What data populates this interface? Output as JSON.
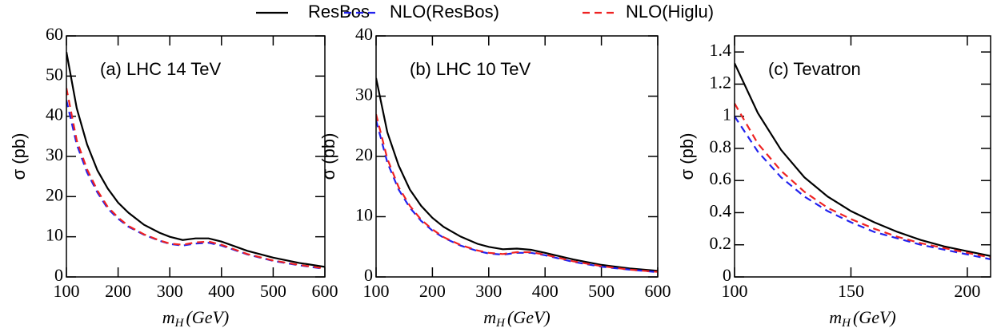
{
  "chart_data": [
    {
      "type": "line",
      "annotation": "(a)  LHC 14 TeV",
      "ylabel": "σ (pb)",
      "xlabel": {
        "symbol": "m",
        "subscript": "H",
        "unit": "(GeV)"
      },
      "x": [
        100,
        120,
        140,
        160,
        180,
        200,
        220,
        250,
        280,
        300,
        325,
        350,
        375,
        400,
        450,
        500,
        550,
        600
      ],
      "series": [
        {
          "name": "ResBos",
          "color": "#000000",
          "dash": "solid",
          "values": [
            56,
            42,
            33,
            26.5,
            22,
            18.5,
            16,
            13,
            11,
            10,
            9.2,
            9.6,
            9.6,
            8.8,
            6.5,
            4.8,
            3.5,
            2.5
          ]
        },
        {
          "name": "NLO(ResBos)",
          "color": "#2222ee",
          "dash": "dashed",
          "values": [
            44,
            33,
            26,
            21,
            17,
            14.5,
            12.5,
            10.5,
            9,
            8.2,
            7.8,
            8.3,
            8.5,
            7.8,
            5.6,
            4,
            2.9,
            2
          ]
        },
        {
          "name": "NLO(Higlu)",
          "color": "#ee2222",
          "dash": "dashed",
          "values": [
            47,
            34,
            26.8,
            21.5,
            17.4,
            14.8,
            12.7,
            10.6,
            9.1,
            8.3,
            8,
            8.6,
            8.8,
            8,
            5.7,
            4.1,
            3,
            2.1
          ]
        }
      ],
      "xlim": [
        100,
        600
      ],
      "xticks": [
        100,
        200,
        300,
        400,
        500,
        600
      ],
      "ylim": [
        0,
        60
      ],
      "yticks": [
        0,
        10,
        20,
        30,
        40,
        50,
        60
      ]
    },
    {
      "type": "line",
      "annotation": "(b)  LHC 10 TeV",
      "ylabel": "σ (pb)",
      "xlabel": {
        "symbol": "m",
        "subscript": "H",
        "unit": "(GeV)"
      },
      "x": [
        100,
        120,
        140,
        160,
        180,
        200,
        220,
        250,
        280,
        300,
        325,
        350,
        375,
        400,
        450,
        500,
        550,
        600
      ],
      "series": [
        {
          "name": "ResBos",
          "color": "#000000",
          "dash": "solid",
          "values": [
            33,
            24,
            18.5,
            14.5,
            11.8,
            9.8,
            8.3,
            6.7,
            5.5,
            5,
            4.6,
            4.7,
            4.5,
            4,
            2.9,
            2,
            1.4,
            1
          ]
        },
        {
          "name": "NLO(ResBos)",
          "color": "#2222ee",
          "dash": "dashed",
          "values": [
            26,
            19,
            14.5,
            11.5,
            9.3,
            7.7,
            6.5,
            5.2,
            4.3,
            3.9,
            3.7,
            4,
            4,
            3.6,
            2.5,
            1.7,
            1.2,
            0.8
          ]
        },
        {
          "name": "NLO(Higlu)",
          "color": "#ee2222",
          "dash": "dashed",
          "values": [
            27,
            19.6,
            14.9,
            11.8,
            9.5,
            7.9,
            6.6,
            5.3,
            4.4,
            4,
            3.8,
            4.1,
            4.1,
            3.7,
            2.6,
            1.8,
            1.2,
            0.85
          ]
        }
      ],
      "xlim": [
        100,
        600
      ],
      "xticks": [
        100,
        200,
        300,
        400,
        500,
        600
      ],
      "ylim": [
        0,
        40
      ],
      "yticks": [
        0,
        10,
        20,
        30,
        40
      ]
    },
    {
      "type": "line",
      "annotation": "(c)  Tevatron",
      "ylabel": "σ (pb)",
      "xlabel": {
        "symbol": "m",
        "subscript": "H",
        "unit": "(GeV)"
      },
      "x": [
        100,
        110,
        120,
        130,
        140,
        150,
        160,
        170,
        180,
        190,
        200,
        210
      ],
      "series": [
        {
          "name": "ResBos",
          "color": "#000000",
          "dash": "solid",
          "values": [
            1.33,
            1.02,
            0.79,
            0.62,
            0.5,
            0.41,
            0.34,
            0.28,
            0.23,
            0.19,
            0.16,
            0.13
          ]
        },
        {
          "name": "NLO(ResBos)",
          "color": "#2222ee",
          "dash": "dashed",
          "values": [
            1.0,
            0.78,
            0.62,
            0.5,
            0.41,
            0.34,
            0.28,
            0.24,
            0.2,
            0.17,
            0.14,
            0.11
          ]
        },
        {
          "name": "NLO(Higlu)",
          "color": "#ee2222",
          "dash": "dashed",
          "values": [
            1.08,
            0.83,
            0.66,
            0.53,
            0.43,
            0.36,
            0.3,
            0.25,
            0.21,
            0.18,
            0.15,
            0.12
          ]
        }
      ],
      "xlim": [
        100,
        210
      ],
      "xticks": [
        100,
        150,
        200
      ],
      "ylim": [
        0,
        1.5
      ],
      "yticks": [
        0,
        0.2,
        0.4,
        0.6,
        0.8,
        1,
        1.2,
        1.4
      ]
    }
  ]
}
